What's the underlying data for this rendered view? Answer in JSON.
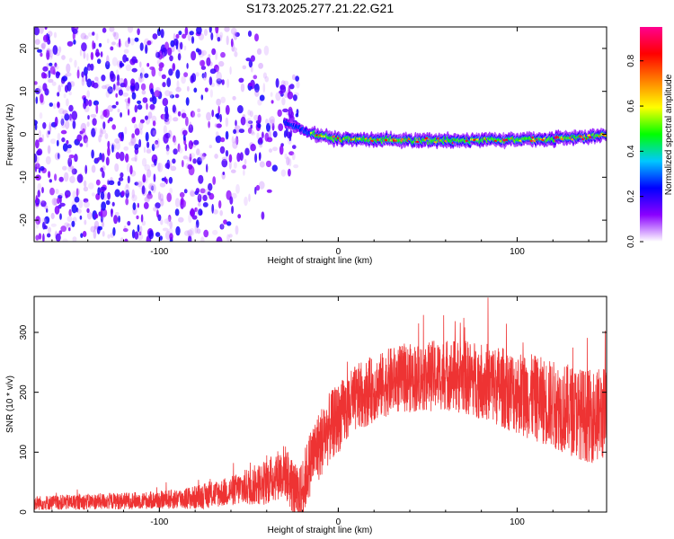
{
  "title": "S173.2025.277.21.22.G21",
  "chart_data": [
    {
      "type": "heatmap",
      "name": "spectrogram",
      "xlabel": "Height of straight line (km)",
      "ylabel": "Frequency (Hz)",
      "xlim": [
        -170,
        150
      ],
      "ylim": [
        -25,
        25
      ],
      "xticks": [
        -100,
        0,
        100
      ],
      "xtick_labels": [
        "-100",
        "0",
        "100"
      ],
      "yticks": [
        -20,
        -10,
        0,
        10,
        20
      ],
      "ytick_labels": [
        "-20",
        "-10",
        "0",
        "10",
        "20"
      ],
      "colorbar": {
        "label": "Normalized spectral amplitude",
        "range": [
          0,
          0.95
        ],
        "ticks": [
          0.0,
          0.2,
          0.4,
          0.6,
          0.8
        ],
        "tick_labels": [
          "0.0",
          "0.2",
          "0.4",
          "0.6",
          "0.8"
        ],
        "colormap": [
          "#ffffff",
          "#8a00ff",
          "#0000ff",
          "#00c8ff",
          "#00ff00",
          "#ffff00",
          "#ff8000",
          "#ff0000",
          "#ff0090"
        ]
      },
      "signal_track": {
        "description_x": [
          -30,
          -20,
          -10,
          0,
          20,
          50,
          80,
          100,
          120,
          140,
          150
        ],
        "frequency_hz": [
          3.0,
          1.0,
          -0.5,
          -1.0,
          -1.2,
          -1.5,
          -1.4,
          -1.2,
          -1.0,
          -0.6,
          0.0
        ]
      }
    },
    {
      "type": "line",
      "name": "snr",
      "xlabel": "Height of straight line (km)",
      "ylabel": "SNR (10 * v/v)",
      "xlim": [
        -170,
        150
      ],
      "ylim": [
        0,
        360
      ],
      "xticks": [
        -100,
        0,
        100
      ],
      "xtick_labels": [
        "-100",
        "0",
        "100"
      ],
      "yticks": [
        0,
        100,
        200,
        300
      ],
      "ytick_labels": [
        "0",
        "100",
        "200",
        "300"
      ],
      "color": "#ee3333",
      "trend": {
        "x": [
          -170,
          -130,
          -100,
          -80,
          -60,
          -40,
          -30,
          -22,
          -15,
          -5,
          10,
          30,
          60,
          80,
          100,
          120,
          140,
          150
        ],
        "y": [
          15,
          18,
          20,
          24,
          35,
          50,
          70,
          20,
          90,
          140,
          190,
          220,
          230,
          220,
          200,
          180,
          160,
          165
        ]
      },
      "noise_amplitude": {
        "x": [
          -170,
          -100,
          -60,
          -30,
          -10,
          20,
          60,
          100,
          150
        ],
        "y": [
          12,
          15,
          25,
          45,
          60,
          55,
          60,
          70,
          80
        ]
      }
    }
  ]
}
